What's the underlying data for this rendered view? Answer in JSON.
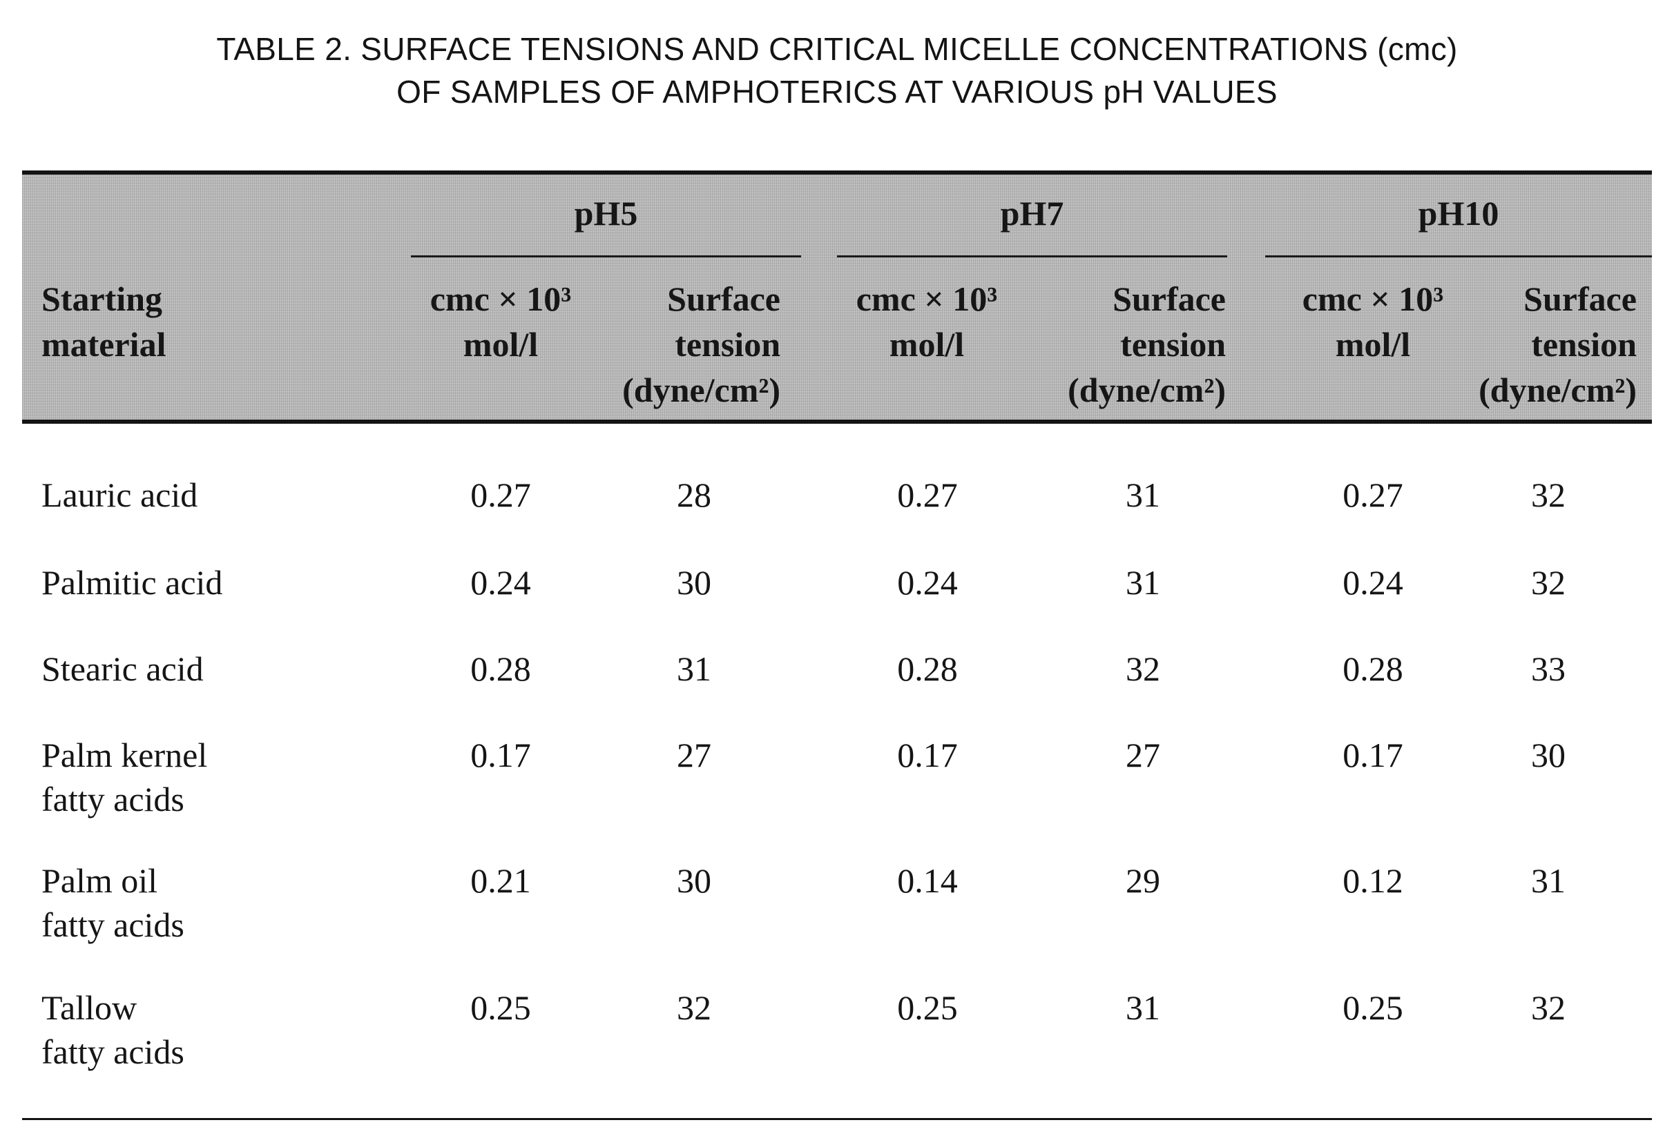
{
  "caption": {
    "line1": "TABLE 2. SURFACE TENSIONS AND CRITICAL MICELLE CONCENTRATIONS (cmc)",
    "line2": "OF SAMPLES OF AMPHOTERICS AT VARIOUS pH VALUES"
  },
  "header": {
    "starting_material": [
      "Starting",
      "material"
    ],
    "groups": [
      "pH5",
      "pH7",
      "pH10"
    ],
    "cmc": [
      "cmc × 10³",
      "mol/l"
    ],
    "surface_tension": [
      "Surface",
      "tension",
      "(dyne/cm²)"
    ]
  },
  "rows": [
    {
      "name": [
        "Lauric acid"
      ],
      "ph5_cmc": "0.27",
      "ph5_st": "28",
      "ph7_cmc": "0.27",
      "ph7_st": "31",
      "ph10_cmc": "0.27",
      "ph10_st": "32"
    },
    {
      "name": [
        "Palmitic acid"
      ],
      "ph5_cmc": "0.24",
      "ph5_st": "30",
      "ph7_cmc": "0.24",
      "ph7_st": "31",
      "ph10_cmc": "0.24",
      "ph10_st": "32"
    },
    {
      "name": [
        "Stearic acid"
      ],
      "ph5_cmc": "0.28",
      "ph5_st": "31",
      "ph7_cmc": "0.28",
      "ph7_st": "32",
      "ph10_cmc": "0.28",
      "ph10_st": "33"
    },
    {
      "name": [
        "Palm kernel",
        "fatty acids"
      ],
      "ph5_cmc": "0.17",
      "ph5_st": "27",
      "ph7_cmc": "0.17",
      "ph7_st": "27",
      "ph10_cmc": "0.17",
      "ph10_st": "30"
    },
    {
      "name": [
        "Palm oil",
        "fatty acids"
      ],
      "ph5_cmc": "0.21",
      "ph5_st": "30",
      "ph7_cmc": "0.14",
      "ph7_st": "29",
      "ph10_cmc": "0.12",
      "ph10_st": "31"
    },
    {
      "name": [
        "Tallow",
        "fatty acids"
      ],
      "ph5_cmc": "0.25",
      "ph5_st": "32",
      "ph7_cmc": "0.25",
      "ph7_st": "31",
      "ph10_cmc": "0.25",
      "ph10_st": "32"
    }
  ]
}
